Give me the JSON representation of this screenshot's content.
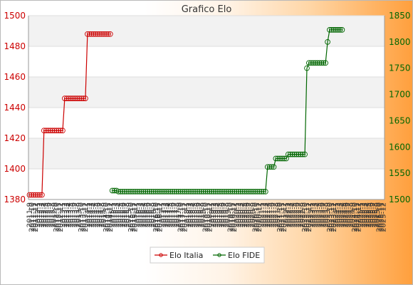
{
  "chart_data": {
    "type": "line",
    "title": "Grafico Elo",
    "colors": {
      "italia": "#cc0000",
      "fide": "#006600",
      "plot_band_light": "#f2f2f2",
      "plot_band_white": "#ffffff"
    },
    "grid": true,
    "legend_position": "bottom-center",
    "y_left": {
      "range": [
        1380,
        1500
      ],
      "ticks": [
        1380,
        1400,
        1420,
        1440,
        1460,
        1480,
        1500
      ]
    },
    "y_right": {
      "range": [
        1500,
        1850
      ],
      "ticks": [
        1500,
        1550,
        1600,
        1650,
        1700,
        1750,
        1800,
        1850
      ]
    },
    "x_tick_labels": [
      "2011-9",
      "2011-10",
      "2011-11",
      "2011-12",
      "2012-1",
      "2012-2",
      "2012-3",
      "2012-4",
      "2012-5",
      "2012-6",
      "2012-7",
      "2012-8",
      "2012-9",
      "2012-10",
      "2012-11",
      "2012-12",
      "2013-1",
      "2013-2",
      "2013-3",
      "2013-4",
      "2013-5",
      "2013-6",
      "2013-7",
      "2013-8",
      "2013-9",
      "2013-10",
      "2013-11",
      "2013-12",
      "2014-1",
      "2014-2",
      "2014-3",
      "2014-4",
      "2014-5",
      "2014-6",
      "2014-7",
      "2014-8",
      "2014-9",
      "2014-10",
      "2014-11",
      "2014-12",
      "2015-1",
      "2015-2",
      "2015-3",
      "2015-4",
      "2015-5",
      "2015-6",
      "2015-7",
      "2015-8",
      "2015-9",
      "2015-10",
      "2015-11",
      "2015-12",
      "2016-1",
      "2016-2",
      "2016-3",
      "2016-4",
      "2016-5",
      "2016-6",
      "2016-7",
      "2016-8",
      "2016-9",
      "2016-10",
      "2016-11",
      "2016-12",
      "2017-1",
      "2017-2",
      "2017-3",
      "2017-4",
      "2017-5",
      "2017-6",
      "2017-7",
      "2017-8",
      "2017-9",
      "2017-10",
      "2017-11",
      "2017-12",
      "2018-1",
      "2018-2",
      "2018-3",
      "2018-4",
      "2018-5",
      "2018-6",
      "2018-7",
      "2018-8",
      "2018-9",
      "2018-10",
      "2018-11",
      "2018-12",
      "2019-1",
      "2019-2",
      "2019-3",
      "2019-4",
      "2019-5",
      "2019-6",
      "2019-7",
      "2019-8",
      "2019-9",
      "2019-10",
      "2019-11",
      "2019-12",
      "2020-1",
      "2020-2",
      "2020-3",
      "2020-4",
      "2020-5",
      "2020-6",
      "2020-7",
      "2020-8",
      "2020-9",
      "2020-10",
      "2020-11",
      "2020-12",
      "2021-1",
      "2021-2",
      "2021-3",
      "2021-4",
      "2021-5",
      "2021-6",
      "2021-7",
      "2021-8",
      "2021-9",
      "2021-10",
      "2021-11",
      "2021-12",
      "2022-1",
      "2022-2",
      "2022-3",
      "2022-4",
      "2022-5",
      "2022-6",
      "2022-7",
      "2022-8",
      "2022-9",
      "2022-10",
      "2022-11",
      "2022-12",
      "2023-1",
      "2023-2",
      "2023-3",
      "2023-4",
      "2023-5",
      "2023-6",
      "2023-7",
      "2023-8",
      "2023-9",
      "2023-10",
      "2023-11",
      "2023-12",
      "2024-1",
      "2024-2",
      "2024-3",
      "2024-4",
      "2024-5",
      "2024-6",
      "2024-7",
      "2024-8",
      "2024-9",
      "2024-10",
      "2024-11",
      "2024-12",
      "2025-1",
      "2025-2",
      "2025-3",
      "2025-4",
      "2025-5",
      "2025-6",
      "2025-7",
      "2025-8",
      "2025-9",
      "2025-10",
      "2025-11",
      "2025-12"
    ],
    "series": [
      {
        "name": "Elo Italia",
        "axis": "left",
        "segments": [
          {
            "from": 0,
            "to": 6,
            "value": 1383
          },
          {
            "from": 7,
            "to": 16,
            "value": 1425
          },
          {
            "from": 17,
            "to": 27,
            "value": 1446
          },
          {
            "from": 28,
            "to": 39,
            "value": 1488
          }
        ]
      },
      {
        "name": "Elo FIDE",
        "axis": "right",
        "segments": [
          {
            "from": 40,
            "to": 42,
            "value": 1517
          },
          {
            "from": 43,
            "to": 114,
            "value": 1515
          },
          {
            "from": 115,
            "to": 118,
            "value": 1562
          },
          {
            "from": 119,
            "to": 124,
            "value": 1578
          },
          {
            "from": 125,
            "to": 133,
            "value": 1586
          },
          {
            "from": 134,
            "to": 134,
            "value": 1750
          },
          {
            "from": 135,
            "to": 143,
            "value": 1760
          },
          {
            "from": 144,
            "to": 144,
            "value": 1800
          },
          {
            "from": 145,
            "to": 151,
            "value": 1823
          }
        ]
      }
    ]
  }
}
